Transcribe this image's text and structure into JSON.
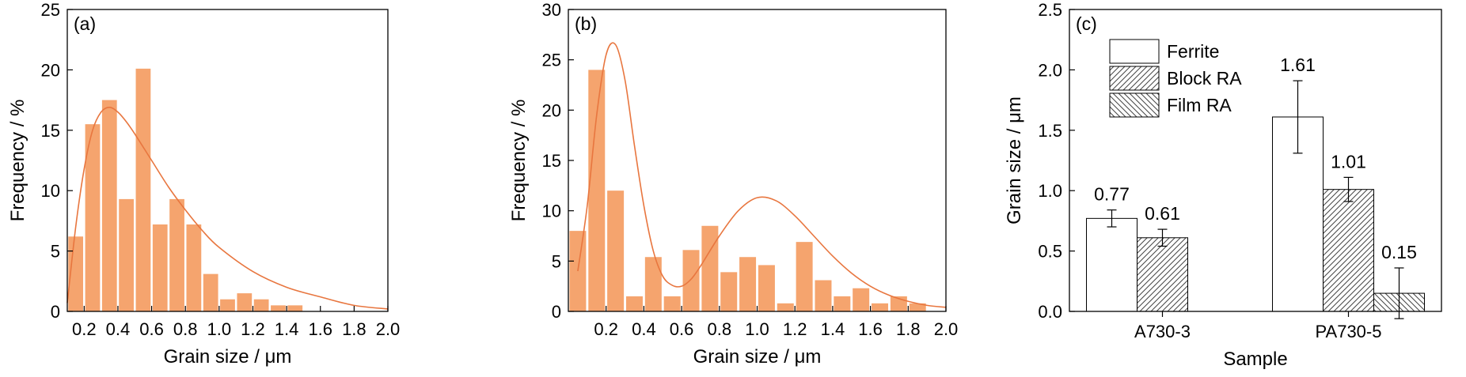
{
  "colors": {
    "bar": "#F5A46E",
    "curve": "#E8763F",
    "axis": "#000000"
  },
  "chart_data": [
    {
      "type": "bar",
      "panel_label": "(a)",
      "xlabel": "Grain size / μm",
      "ylabel": "Frequency / %",
      "xlim": [
        0.1,
        2.0
      ],
      "ylim": [
        0,
        25
      ],
      "xticks": [
        "0.2",
        "0.4",
        "0.6",
        "0.8",
        "1.0",
        "1.2",
        "1.4",
        "1.6",
        "1.8",
        "2.0"
      ],
      "yticks": [
        "0",
        "5",
        "10",
        "15",
        "20",
        "25"
      ],
      "bin_width": 0.1,
      "bin_centers": [
        0.15,
        0.25,
        0.35,
        0.45,
        0.55,
        0.65,
        0.75,
        0.85,
        0.95,
        1.05,
        1.15,
        1.25,
        1.35,
        1.45
      ],
      "values": [
        6.2,
        15.5,
        17.5,
        9.3,
        20.1,
        7.2,
        9.3,
        7.2,
        3.1,
        1.0,
        1.5,
        1.0,
        0.5,
        0.5
      ],
      "fit_curve": {
        "x": [
          0.1,
          0.15,
          0.2,
          0.25,
          0.3,
          0.35,
          0.4,
          0.45,
          0.5,
          0.6,
          0.7,
          0.8,
          0.9,
          1.0,
          1.2,
          1.4,
          1.6,
          1.8,
          2.0
        ],
        "y": [
          0.7,
          7.0,
          11.8,
          15.0,
          16.5,
          16.9,
          16.5,
          15.7,
          14.7,
          12.5,
          10.3,
          8.4,
          6.7,
          5.3,
          3.3,
          2.0,
          1.2,
          0.5,
          0.2
        ]
      }
    },
    {
      "type": "bar",
      "panel_label": "(b)",
      "xlabel": "Grain size / μm",
      "ylabel": "Frequency / %",
      "xlim": [
        0.0,
        2.0
      ],
      "ylim": [
        0,
        30
      ],
      "xticks": [
        "0.2",
        "0.4",
        "0.6",
        "0.8",
        "1.0",
        "1.2",
        "1.4",
        "1.6",
        "1.8",
        "2.0"
      ],
      "yticks": [
        "0",
        "5",
        "10",
        "15",
        "20",
        "25",
        "30"
      ],
      "bin_width": 0.1,
      "bin_centers": [
        0.05,
        0.15,
        0.25,
        0.35,
        0.45,
        0.55,
        0.65,
        0.75,
        0.85,
        0.95,
        1.05,
        1.15,
        1.25,
        1.35,
        1.45,
        1.55,
        1.65,
        1.75,
        1.85,
        1.95
      ],
      "values": [
        8.0,
        24.0,
        12.0,
        1.5,
        5.4,
        1.5,
        6.1,
        8.5,
        3.9,
        5.4,
        4.6,
        0.8,
        6.9,
        3.1,
        1.5,
        2.3,
        0.8,
        1.5,
        0.8,
        0
      ],
      "fit_curve": {
        "x": [
          0.05,
          0.1,
          0.15,
          0.2,
          0.25,
          0.3,
          0.35,
          0.4,
          0.45,
          0.5,
          0.55,
          0.6,
          0.65,
          0.7,
          0.8,
          0.9,
          1.0,
          1.1,
          1.2,
          1.3,
          1.4,
          1.5,
          1.6,
          1.7,
          1.8,
          1.9,
          2.0
        ],
        "y": [
          4.0,
          10.5,
          19.5,
          25.5,
          26.5,
          23.0,
          16.5,
          10.5,
          6.0,
          3.5,
          2.6,
          2.5,
          3.2,
          4.5,
          7.5,
          10.0,
          11.3,
          11.0,
          9.5,
          7.5,
          5.5,
          3.8,
          2.5,
          1.6,
          1.0,
          0.6,
          0.4
        ]
      }
    },
    {
      "type": "bar",
      "panel_label": "(c)",
      "xlabel": "Sample",
      "ylabel": "Grain size / μm",
      "ylim": [
        0,
        2.5
      ],
      "yticks": [
        "0.0",
        "0.5",
        "1.0",
        "1.5",
        "2.0",
        "2.5"
      ],
      "categories": [
        "A730-3",
        "PA730-5"
      ],
      "legend_position": "top-left",
      "series": [
        {
          "name": "Ferrite",
          "pattern": "none",
          "values": [
            0.77,
            1.61
          ],
          "errors": [
            0.07,
            0.3
          ],
          "labels": [
            "0.77",
            "1.61"
          ]
        },
        {
          "name": "Block RA",
          "pattern": "hatch-forward",
          "values": [
            0.61,
            1.01
          ],
          "errors": [
            0.07,
            0.1
          ],
          "labels": [
            "0.61",
            "1.01"
          ]
        },
        {
          "name": "Film RA",
          "pattern": "hatch-backward",
          "values": [
            null,
            0.15
          ],
          "errors": [
            null,
            0.21
          ],
          "labels": [
            "",
            "0.15"
          ]
        }
      ]
    }
  ]
}
